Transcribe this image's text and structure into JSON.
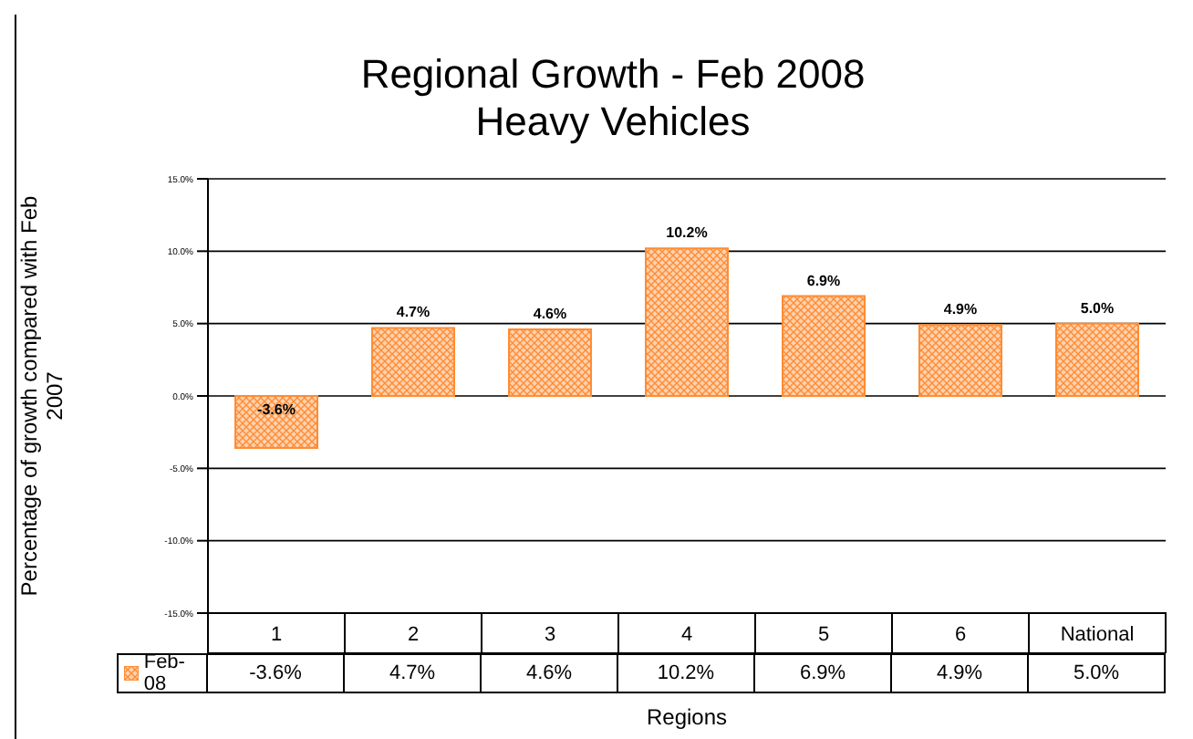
{
  "chart_data": {
    "type": "bar",
    "title": "Regional Growth - Feb 2008",
    "subtitle": "Heavy Vehicles",
    "xlabel": "Regions",
    "ylabel": "Percentage of growth compared with Feb 2007",
    "categories": [
      "1",
      "2",
      "3",
      "4",
      "5",
      "6",
      "National"
    ],
    "series": [
      {
        "name": "Feb-08",
        "color": "#ff8c33",
        "values": [
          -3.6,
          4.7,
          4.6,
          10.2,
          6.9,
          4.9,
          5.0
        ],
        "value_labels": [
          "-3.6%",
          "4.7%",
          "4.6%",
          "10.2%",
          "6.9%",
          "4.9%",
          "5.0%"
        ]
      }
    ],
    "ylim": [
      -15,
      15
    ],
    "yticks": [
      {
        "value": -15,
        "label": "-15.0%"
      },
      {
        "value": -10,
        "label": "-10.0%"
      },
      {
        "value": -5,
        "label": "-5.0%"
      },
      {
        "value": 0,
        "label": "0.0%"
      },
      {
        "value": 5,
        "label": "5.0%"
      },
      {
        "value": 10,
        "label": "10.0%"
      },
      {
        "value": 15,
        "label": "15.0%"
      }
    ],
    "grid": "y",
    "legend": "bottom"
  }
}
